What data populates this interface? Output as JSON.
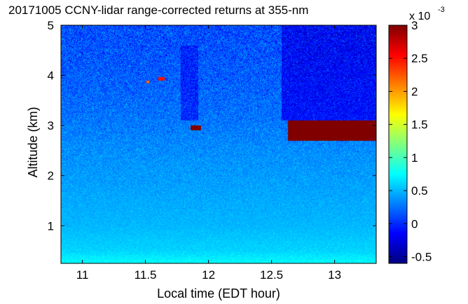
{
  "chart_data": {
    "type": "heatmap",
    "title": "20171005 CCNY-lidar range-corrected returns at 355-nm",
    "xlabel": "Local time (EDT hour)",
    "ylabel": "Altitude (km)",
    "xlim": [
      10.83,
      13.33
    ],
    "ylim": [
      0.25,
      5
    ],
    "x_ticks": [
      11,
      11.5,
      12,
      12.5,
      13
    ],
    "x_tick_labels": [
      "11",
      "11.5",
      "12",
      "12.5",
      "13"
    ],
    "y_ticks": [
      1,
      2,
      3,
      4,
      5
    ],
    "y_tick_labels": [
      "1",
      "2",
      "3",
      "4",
      "5"
    ],
    "colorbar": {
      "colormap": "jet",
      "range": [
        -0.6,
        3
      ],
      "ticks": [
        -0.5,
        0,
        0.5,
        1,
        1.5,
        2,
        2.5,
        3
      ],
      "tick_labels": [
        "-0.5",
        "0",
        "0.5",
        "1",
        "1.5",
        "2",
        "2.5",
        "3"
      ],
      "multiplier_prefix": "x 10",
      "multiplier_exponent": "-3"
    },
    "background_profile": {
      "altitude_km": [
        0.25,
        0.5,
        1.0,
        1.5,
        2.0,
        2.5,
        3.0,
        3.5,
        4.0,
        4.5,
        5.0
      ],
      "value_x1e3": [
        0.75,
        0.6,
        0.5,
        0.45,
        0.4,
        0.35,
        0.28,
        0.22,
        0.18,
        0.14,
        0.12
      ]
    },
    "features": [
      {
        "kind": "aerosol layer (saturated)",
        "time_start": 12.63,
        "time_end": 13.33,
        "altitude_top_km": 3.15,
        "altitude_bottom_km": 2.7,
        "value_x1e3": 3
      },
      {
        "kind": "cloud patch",
        "time_start": 11.86,
        "time_end": 11.94,
        "altitude_top_km": 3.0,
        "altitude_bottom_km": 2.9,
        "value_x1e3": 3
      },
      {
        "kind": "cloud patch",
        "time_start": 11.51,
        "time_end": 11.53,
        "altitude_top_km": 3.9,
        "altitude_bottom_km": 3.84,
        "value_x1e3": 2.2
      },
      {
        "kind": "cloud patch",
        "time_start": 11.6,
        "time_end": 11.65,
        "altitude_top_km": 3.96,
        "altitude_bottom_km": 3.9,
        "value_x1e3": 2.5
      },
      {
        "kind": "low-signal column",
        "time_start": 11.78,
        "time_end": 11.92,
        "altitude_top_km": 4.6,
        "altitude_bottom_km": 3.1,
        "value_x1e3": -0.1
      },
      {
        "kind": "low-signal region",
        "time_start": 12.58,
        "time_end": 13.33,
        "altitude_top_km": 5.0,
        "altitude_bottom_km": 3.1,
        "value_x1e3": -0.2
      }
    ]
  }
}
